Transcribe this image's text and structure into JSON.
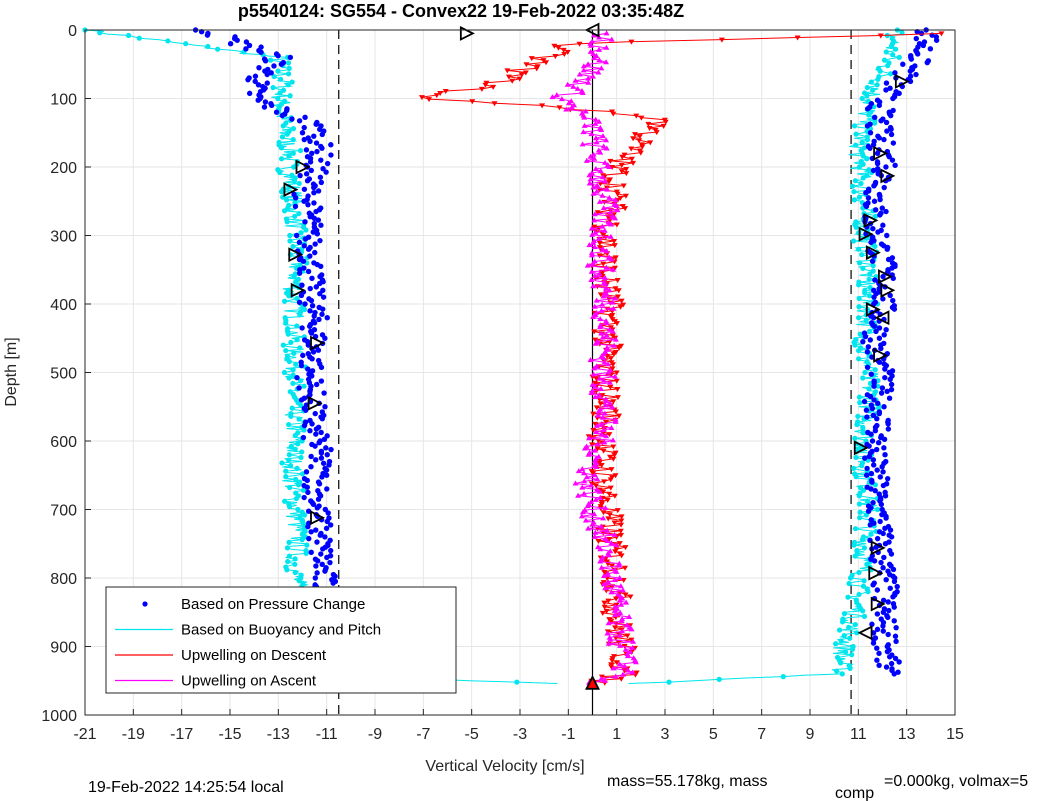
{
  "chart_data": {
    "type": "scatter",
    "title": "p5540124: SG554 - Convex22 19-Feb-2022 03:35:48Z",
    "xlabel": "Vertical Velocity [cm/s]",
    "ylabel": "Depth [m]",
    "xlim": [
      -21,
      15
    ],
    "ylim": [
      0,
      1000
    ],
    "y_reversed": true,
    "grid": true,
    "x_ticks": [
      "-21",
      "-19",
      "-17",
      "-15",
      "-13",
      "-11",
      "-9",
      "-7",
      "-5",
      "-3",
      "-1",
      "1",
      "3",
      "5",
      "7",
      "9",
      "11",
      "13",
      "15"
    ],
    "y_ticks": [
      "0",
      "100",
      "200",
      "300",
      "400",
      "500",
      "600",
      "700",
      "800",
      "900",
      "1000"
    ],
    "legend_position": "bottom-left",
    "reference_lines": [
      {
        "style": "dashed",
        "x": -10.5
      },
      {
        "style": "solid",
        "x": 0
      },
      {
        "style": "dashed",
        "x": 10.7
      }
    ],
    "series": [
      {
        "name": "Based on Pressure Change",
        "marker": "dot",
        "color": "#0000ff",
        "profiles": [
          {
            "depth": [
              0,
              40,
              80,
              100,
              140,
              180,
              200,
              240,
              280,
              300,
              340,
              380,
              420,
              460,
              500,
              540,
              580,
              620,
              660,
              700,
              740,
              780,
              820,
              860,
              900,
              940,
              952
            ],
            "velocity": [
              -16,
              -13,
              -14,
              -14,
              -11.5,
              -11.3,
              -11.5,
              -11.8,
              -11.7,
              -11.8,
              -11.6,
              -11.7,
              -11.5,
              -11.5,
              -11.7,
              -11.6,
              -11.6,
              -11.3,
              -11.4,
              -11.4,
              -11.3,
              -11.2,
              -11.1,
              -11,
              -10.8,
              -10.5,
              -10.3
            ]
          },
          {
            "depth": [
              0,
              40,
              70,
              100,
              140,
              180,
              200,
              240,
              280,
              300,
              340,
              380,
              420,
              460,
              500,
              540,
              580,
              620,
              660,
              700,
              740,
              780,
              820,
              860,
              900,
              940
            ],
            "velocity": [
              14,
              13.5,
              12.8,
              12,
              11.8,
              12,
              12.2,
              11.8,
              11.6,
              11.8,
              12,
              12.1,
              11.9,
              11.7,
              11.9,
              11.8,
              11.9,
              11.6,
              11.7,
              11.8,
              11.9,
              12,
              12.1,
              12,
              12.2,
              12.1
            ]
          }
        ]
      },
      {
        "name": "Based on Buoyancy and Pitch",
        "marker": "line",
        "color": "#00e5ee",
        "profiles": [
          {
            "depth": [
              0,
              40,
              80,
              100,
              140,
              180,
              200,
              240,
              280,
              300,
              340,
              380,
              420,
              460,
              500,
              540,
              580,
              620,
              660,
              700,
              740,
              780,
              820,
              860,
              900,
              940,
              955
            ],
            "velocity": [
              -21,
              -13,
              -12.8,
              -12.9,
              -12.8,
              -12.5,
              -12.6,
              -12.4,
              -12.3,
              -12.3,
              -12.2,
              -12.4,
              -12.3,
              -12.4,
              -12.3,
              -12.4,
              -12.3,
              -12.4,
              -12.4,
              -12.3,
              -12.2,
              -12.3,
              -12.2,
              -12.2,
              -12.1,
              -12,
              -1
            ]
          },
          {
            "depth": [
              0,
              40,
              80,
              100,
              140,
              180,
              200,
              240,
              280,
              300,
              340,
              380,
              420,
              460,
              500,
              540,
              580,
              620,
              660,
              700,
              740,
              780,
              820,
              860,
              900,
              940,
              955
            ],
            "velocity": [
              12.5,
              12.3,
              11.8,
              11.5,
              11.2,
              11,
              11.1,
              11.2,
              11.3,
              11.2,
              11.4,
              11.3,
              11.4,
              11.2,
              11.4,
              11.5,
              11.3,
              11.2,
              11.3,
              11.4,
              11.3,
              11.2,
              11,
              10.8,
              10.4,
              10.3,
              1
            ]
          }
        ]
      },
      {
        "name": "Upwelling on Descent",
        "marker": "triangle-down",
        "color": "#ff0000",
        "depth": [
          5,
          20,
          60,
          80,
          100,
          110,
          130,
          160,
          200,
          260,
          300,
          360,
          400,
          460,
          500,
          560,
          600,
          660,
          700,
          760,
          800,
          860,
          900,
          940,
          955
        ],
        "velocity": [
          15,
          -1,
          -3,
          -4,
          -7.5,
          -2,
          3,
          2,
          1,
          0.8,
          0.6,
          0.5,
          0.7,
          0.6,
          0.5,
          0.6,
          0.4,
          0.5,
          0.6,
          0.8,
          1,
          1,
          1.2,
          1.3,
          0
        ]
      },
      {
        "name": "Upwelling on Ascent",
        "marker": "triangle-up",
        "color": "#ff00ff",
        "depth": [
          5,
          40,
          80,
          100,
          140,
          200,
          260,
          300,
          360,
          400,
          460,
          500,
          560,
          600,
          660,
          700,
          760,
          800,
          860,
          900,
          940,
          955
        ],
        "velocity": [
          0.5,
          0.3,
          -0.5,
          -1.2,
          0,
          0.2,
          0.5,
          0.4,
          0.3,
          0.6,
          0.5,
          0.4,
          0.5,
          0.3,
          -0.2,
          0,
          0.6,
          0.8,
          1,
          1.2,
          1.4,
          0
        ]
      }
    ],
    "flag_markers": [
      {
        "shape": "triangle-left",
        "depth": 0,
        "velocity": 0
      },
      {
        "shape": "triangle-right",
        "depth": 5,
        "velocity": -5.2
      },
      {
        "shape": "triangle-right",
        "depth": 200,
        "velocity": -12
      },
      {
        "shape": "triangle-right",
        "depth": 233,
        "velocity": -12.5
      },
      {
        "shape": "triangle-right",
        "depth": 328,
        "velocity": -12.3
      },
      {
        "shape": "triangle-right",
        "depth": 380,
        "velocity": -12.2
      },
      {
        "shape": "triangle-right",
        "depth": 457,
        "velocity": -11.4
      },
      {
        "shape": "triangle-right",
        "depth": 545,
        "velocity": -11.5
      },
      {
        "shape": "triangle-right",
        "depth": 712,
        "velocity": -11.4
      },
      {
        "shape": "triangle-right",
        "depth": 888,
        "velocity": -11.8
      },
      {
        "shape": "triangle-right",
        "depth": 953,
        "velocity": -10.3
      },
      {
        "shape": "triangle-right",
        "depth": 75,
        "velocity": 12.8
      },
      {
        "shape": "triangle-right",
        "depth": 180,
        "velocity": 11.9
      },
      {
        "shape": "triangle-right",
        "depth": 213,
        "velocity": 12.2
      },
      {
        "shape": "triangle-right",
        "depth": 278,
        "velocity": 11.5
      },
      {
        "shape": "triangle-right",
        "depth": 298,
        "velocity": 11.3
      },
      {
        "shape": "triangle-right",
        "depth": 325,
        "velocity": 11.6
      },
      {
        "shape": "triangle-right",
        "depth": 360,
        "velocity": 12.1
      },
      {
        "shape": "triangle-right",
        "depth": 380,
        "velocity": 12.2
      },
      {
        "shape": "triangle-right",
        "depth": 408,
        "velocity": 11.6
      },
      {
        "shape": "triangle-left",
        "depth": 420,
        "velocity": 12
      },
      {
        "shape": "triangle-right",
        "depth": 475,
        "velocity": 11.9
      },
      {
        "shape": "triangle-right",
        "depth": 610,
        "velocity": 11.1
      },
      {
        "shape": "triangle-right",
        "depth": 756,
        "velocity": 11.8
      },
      {
        "shape": "triangle-right",
        "depth": 793,
        "velocity": 11.7
      },
      {
        "shape": "triangle-right",
        "depth": 838,
        "velocity": 11.8
      },
      {
        "shape": "triangle-left",
        "depth": 880,
        "velocity": 11.3
      },
      {
        "shape": "triangle-up-red",
        "depth": 953,
        "velocity": 0
      }
    ]
  },
  "footer": {
    "local_time": "19-Feb-2022 14:25:54 local",
    "mass_text": "mass=55.178kg, mass",
    "comp_sub": "comp",
    "comp_rest": "=0.000kg, volmax=5"
  }
}
